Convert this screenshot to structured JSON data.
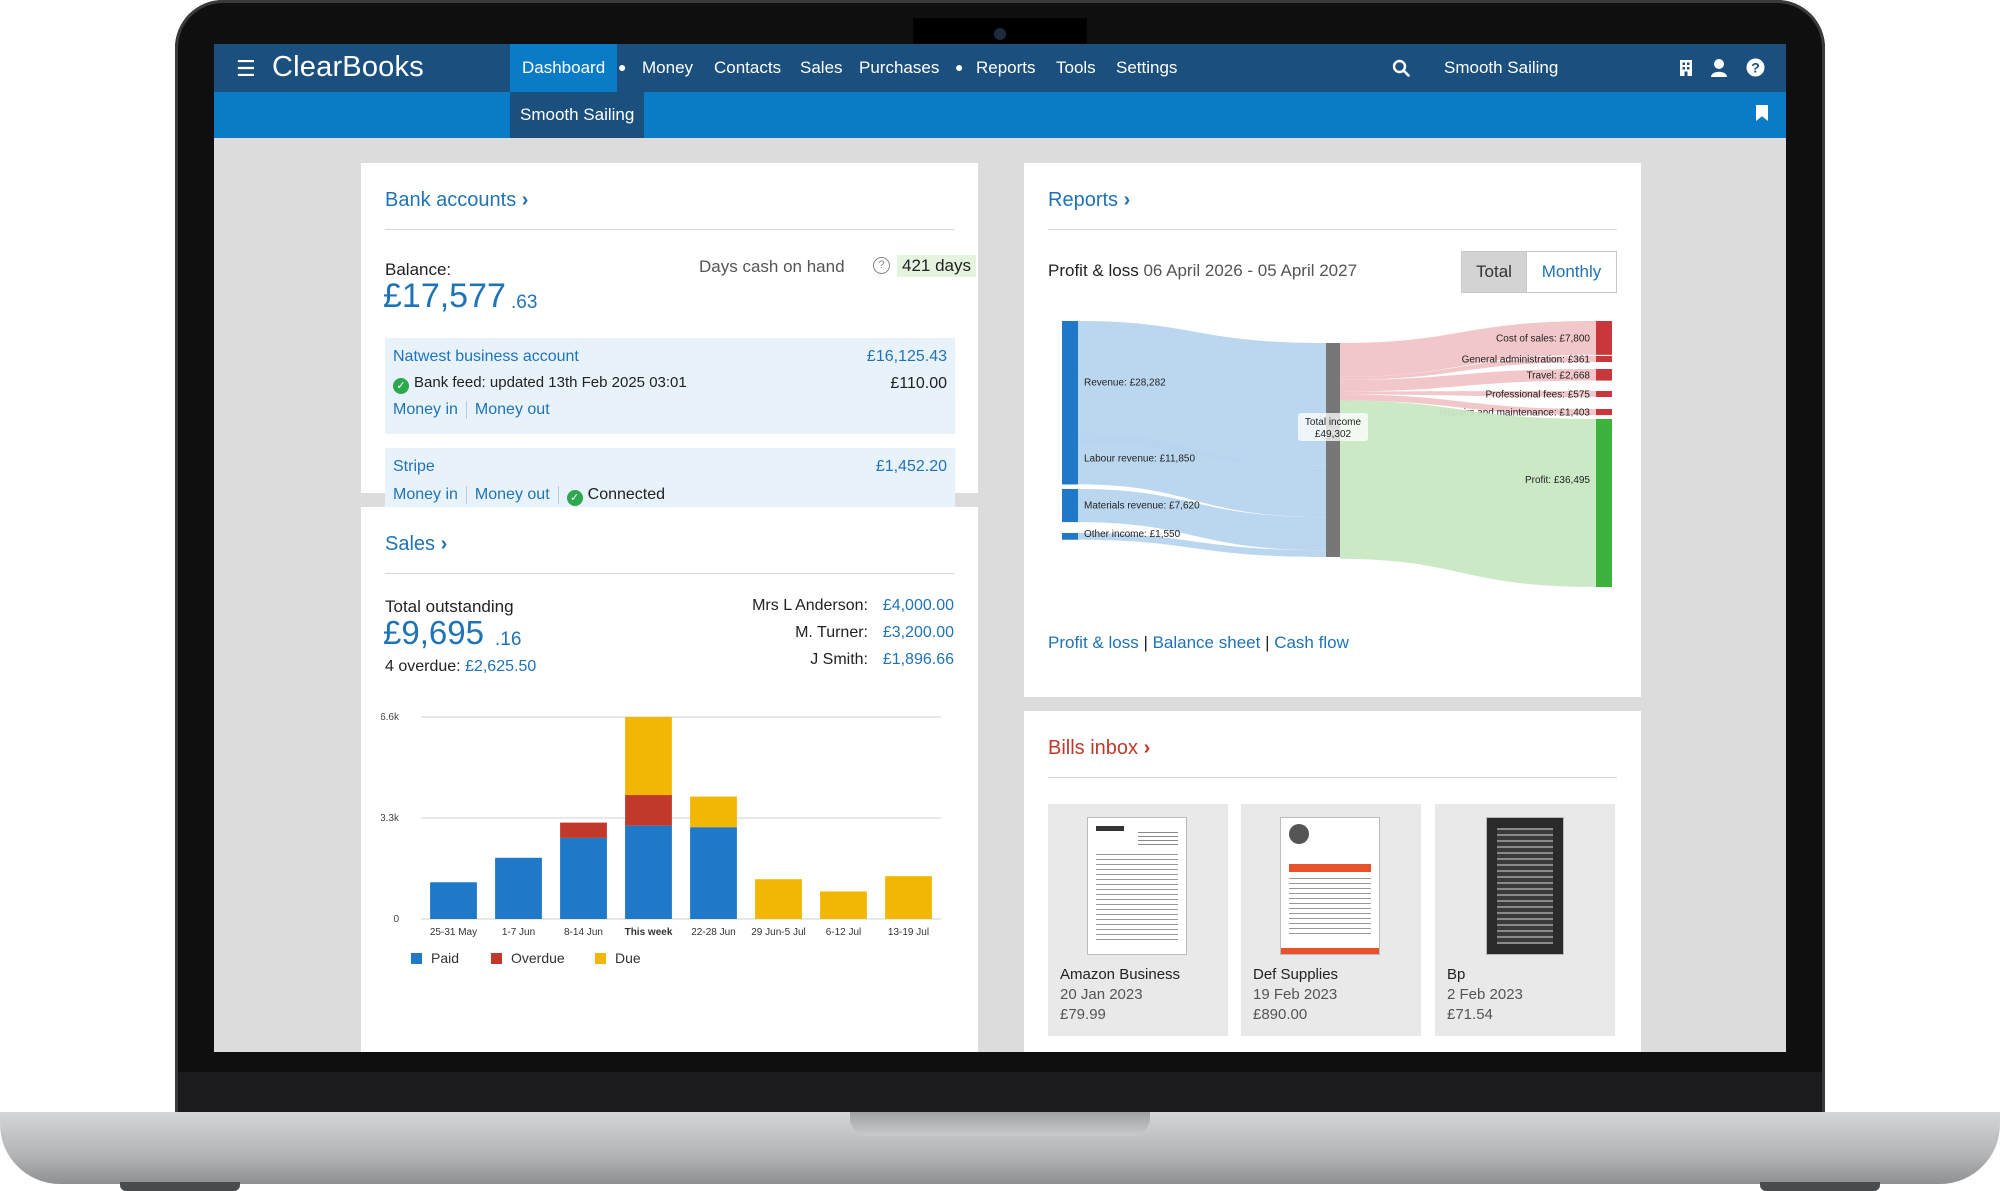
{
  "app": {
    "name": "ClearBooks",
    "company": "Smooth Sailing"
  },
  "nav": {
    "items": [
      "Dashboard",
      "Money",
      "Contacts",
      "Sales",
      "Purchases",
      "Reports",
      "Tools",
      "Settings"
    ],
    "active": "Dashboard",
    "sub_active": "Smooth Sailing"
  },
  "bank": {
    "title": "Bank accounts",
    "balance_label": "Balance:",
    "balance_main": "£17,577",
    "balance_pence": ".63",
    "days_label": "Days cash on hand",
    "days_value": "421 days",
    "accounts": [
      {
        "name": "Natwest business account",
        "amount": "£16,125.43",
        "feed": "Bank feed: updated 13th Feb 2025 03:01",
        "sub_amount": "£110.00",
        "money_in": "Money in",
        "money_out": "Money out"
      },
      {
        "name": "Stripe",
        "amount": "£1,452.20",
        "money_in": "Money in",
        "money_out": "Money out",
        "status": "Connected"
      }
    ]
  },
  "sales": {
    "title": "Sales",
    "total_label": "Total outstanding",
    "total_main": "£9,695",
    "total_pence": ".16",
    "overdue_label": "4 overdue:",
    "overdue_value": "£2,625.50",
    "debtors": [
      {
        "name": "Mrs L Anderson:",
        "amount": "£4,000.00"
      },
      {
        "name": "M. Turner:",
        "amount": "£3,200.00"
      },
      {
        "name": "J Smith:",
        "amount": "£1,896.66"
      }
    ]
  },
  "chart_data": {
    "type": "bar",
    "stacked": true,
    "categories": [
      "25-31 May",
      "1-7 Jun",
      "8-14 Jun",
      "This week",
      "22-28 Jun",
      "29 Jun-5 Jul",
      "6-12 Jul",
      "13-19 Jul"
    ],
    "highlight_category": "This week",
    "series": [
      {
        "name": "Paid",
        "color": "#1f78c8",
        "values": [
          1200,
          2000,
          2650,
          3050,
          3000,
          0,
          0,
          0
        ]
      },
      {
        "name": "Overdue",
        "color": "#c0392b",
        "values": [
          0,
          0,
          500,
          1000,
          0,
          0,
          0,
          0
        ]
      },
      {
        "name": "Due",
        "color": "#f2b705",
        "values": [
          0,
          0,
          0,
          2550,
          1000,
          1300,
          900,
          1400
        ]
      }
    ],
    "yticks": [
      "0",
      "3.3k",
      "6.6k"
    ],
    "ylim": [
      0,
      6600
    ],
    "grid": true,
    "legend_position": "bottom"
  },
  "reports": {
    "title": "Reports",
    "pl_label": "Profit & loss",
    "period": "06 April 2026 - 05 April 2027",
    "toggle_total": "Total",
    "toggle_monthly": "Monthly",
    "links": [
      "Profit & loss",
      "Balance sheet",
      "Cash flow"
    ],
    "sankey": {
      "inflows": [
        {
          "label": "Revenue: £28,282",
          "value": 28282
        },
        {
          "label": "Labour revenue: £11,850",
          "value": 11850
        },
        {
          "label": "Materials revenue: £7,620",
          "value": 7620
        },
        {
          "label": "Other income: £1,550",
          "value": 1550
        }
      ],
      "center_line1": "Total income",
      "center_line2": "£49,302",
      "outflows": [
        {
          "label": "Cost of sales: £7,800",
          "value": 7800
        },
        {
          "label": "General administration: £361",
          "value": 361
        },
        {
          "label": "Travel: £2,668",
          "value": 2668
        },
        {
          "label": "Professional fees: £575",
          "value": 575
        },
        {
          "label": "Repairs and maintenance: £1,403",
          "value": 1403
        },
        {
          "label": "Profit: £36,495",
          "value": 36495
        }
      ],
      "colors": {
        "income": "#1f78c8",
        "income_flow": "#b7d5ee",
        "center": "#777777",
        "cost": "#c9373c",
        "cost_flow": "#f1c4c6",
        "profit": "#3cb33c",
        "profit_flow": "#c8e8c2"
      }
    }
  },
  "bills": {
    "title": "Bills inbox",
    "items": [
      {
        "vendor": "Amazon Business",
        "date": "20 Jan 2023",
        "amount": "£79.99"
      },
      {
        "vendor": "Def Supplies",
        "date": "19 Feb 2023",
        "amount": "£890.00"
      },
      {
        "vendor": "Bp",
        "date": "2 Feb 2023",
        "amount": "£71.54"
      }
    ]
  },
  "icons": {
    "menu": "menu-icon",
    "search": "search-icon",
    "building": "building-icon",
    "user": "user-icon",
    "help": "help-icon",
    "bookmark": "bookmark-icon",
    "chevron": "chevron-down-icon",
    "check": "check-circle-icon"
  }
}
